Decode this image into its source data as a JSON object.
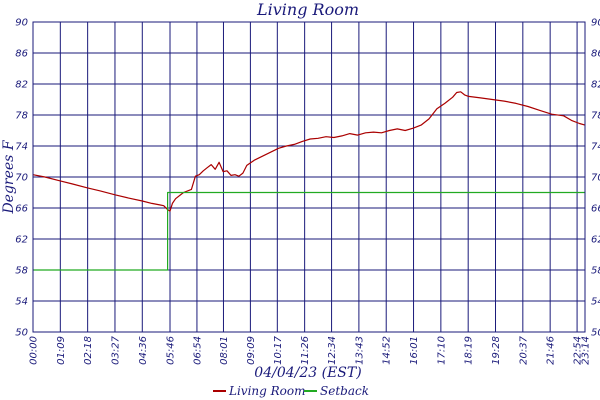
{
  "chart_data": {
    "type": "line",
    "title": "Living Room",
    "xlabel": "04/04/23 (EST)",
    "ylabel": "Degrees F",
    "ylim": [
      50,
      90
    ],
    "y_ticks": [
      "50",
      "54",
      "58",
      "62",
      "66",
      "70",
      "74",
      "78",
      "82",
      "86",
      "90"
    ],
    "x_ticks": [
      "00:00",
      "01:09",
      "02:18",
      "03:27",
      "04:36",
      "05:46",
      "06:54",
      "08:01",
      "09:09",
      "10:17",
      "11:26",
      "12:34",
      "13:43",
      "14:52",
      "16:01",
      "17:10",
      "18:19",
      "19:28",
      "20:37",
      "21:46",
      "22:54",
      "23:14"
    ],
    "x_tick_minutes": [
      0,
      69,
      138,
      207,
      276,
      346,
      414,
      481,
      549,
      617,
      686,
      754,
      823,
      892,
      961,
      1030,
      1099,
      1168,
      1237,
      1306,
      1374,
      1394
    ],
    "grid": true,
    "legend_position": "bottom",
    "series": [
      {
        "name": "Living Room",
        "color": "#aa0000",
        "x_minutes": [
          0,
          30,
          69,
          100,
          138,
          170,
          207,
          240,
          276,
          300,
          320,
          330,
          340,
          346,
          352,
          360,
          380,
          400,
          410,
          420,
          430,
          440,
          450,
          460,
          470,
          480,
          490,
          500,
          510,
          520,
          530,
          540,
          560,
          580,
          600,
          620,
          640,
          660,
          680,
          700,
          720,
          740,
          760,
          780,
          800,
          820,
          840,
          860,
          880,
          900,
          920,
          940,
          960,
          980,
          1000,
          1020,
          1040,
          1060,
          1070,
          1080,
          1090,
          1100,
          1130,
          1160,
          1190,
          1220,
          1250,
          1280,
          1310,
          1340,
          1360,
          1380,
          1394
        ],
        "values": [
          70.3,
          70.0,
          69.5,
          69.1,
          68.6,
          68.2,
          67.7,
          67.3,
          66.9,
          66.6,
          66.4,
          66.3,
          65.8,
          65.6,
          66.6,
          67.2,
          68.0,
          68.4,
          70.1,
          70.3,
          70.8,
          71.2,
          71.6,
          71.0,
          71.9,
          70.7,
          70.8,
          70.2,
          70.3,
          70.1,
          70.5,
          71.5,
          72.2,
          72.7,
          73.2,
          73.7,
          74.0,
          74.2,
          74.6,
          74.9,
          75.0,
          75.2,
          75.1,
          75.3,
          75.6,
          75.4,
          75.7,
          75.8,
          75.7,
          76.0,
          76.2,
          76.0,
          76.3,
          76.7,
          77.5,
          78.8,
          79.5,
          80.3,
          80.9,
          81.0,
          80.6,
          80.4,
          80.2,
          80.0,
          79.8,
          79.5,
          79.1,
          78.6,
          78.1,
          77.9,
          77.3,
          76.9,
          76.7
        ]
      },
      {
        "name": "Setback",
        "color": "#22aa22",
        "step": true,
        "x_minutes": [
          0,
          340,
          340,
          1394
        ],
        "values": [
          58.0,
          58.0,
          68.0,
          68.0
        ]
      }
    ]
  }
}
